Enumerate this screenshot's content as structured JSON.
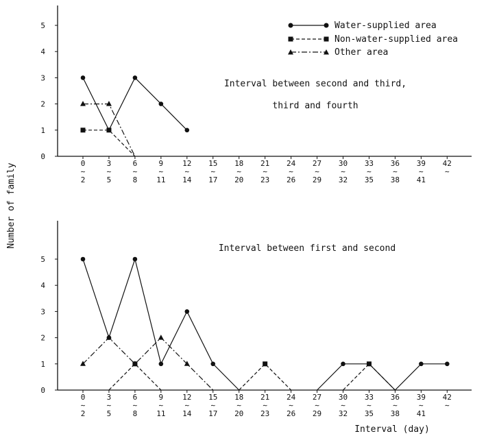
{
  "chart_data": {
    "type": "line",
    "ylabel": "Number of family",
    "xlabel": "Interval (day)",
    "legend": {
      "placement": "top-right",
      "entries": [
        {
          "name": "Water-supplied area",
          "style": "solid",
          "marker": "circle"
        },
        {
          "name": "Non-water-supplied area",
          "style": "dashed",
          "marker": "square"
        },
        {
          "name": "Other area",
          "style": "dashdot",
          "marker": "triangle"
        }
      ]
    },
    "tick_top": [
      "0",
      "3",
      "6",
      "9",
      "12",
      "15",
      "18",
      "21",
      "24",
      "27",
      "30",
      "33",
      "36",
      "39",
      "42"
    ],
    "tick_sep": "∼",
    "tick_bottom": [
      "2",
      "5",
      "8",
      "11",
      "14",
      "17",
      "20",
      "23",
      "26",
      "29",
      "32",
      "35",
      "38",
      "41",
      ""
    ],
    "panels": [
      {
        "annotation": [
          "Interval between second and third,",
          "third and fourth"
        ],
        "ylim": [
          0,
          5
        ],
        "yticks": [
          "0",
          "1",
          "2",
          "3",
          "4",
          "5"
        ],
        "series": [
          {
            "name": "Water-supplied area",
            "points": [
              [
                0,
                3
              ],
              [
                3,
                1
              ],
              [
                6,
                3
              ],
              [
                9,
                2
              ],
              [
                12,
                1
              ]
            ]
          },
          {
            "name": "Non-water-supplied area",
            "points": [
              [
                0,
                1
              ],
              [
                3,
                1
              ],
              [
                6,
                0
              ]
            ]
          },
          {
            "name": "Other area",
            "points": [
              [
                0,
                2
              ],
              [
                3,
                2
              ],
              [
                6,
                0
              ]
            ]
          }
        ]
      },
      {
        "annotation": [
          "Interval between first and second"
        ],
        "ylim": [
          0,
          5
        ],
        "yticks": [
          "0",
          "1",
          "2",
          "3",
          "4",
          "5"
        ],
        "series": [
          {
            "name": "Water-supplied area",
            "segments": [
              [
                [
                  0,
                  5
                ],
                [
                  3,
                  2
                ],
                [
                  6,
                  5
                ],
                [
                  9,
                  1
                ],
                [
                  12,
                  3
                ],
                [
                  15,
                  1
                ],
                [
                  18,
                  0
                ]
              ],
              [
                [
                  27,
                  0
                ],
                [
                  30,
                  1
                ],
                [
                  33,
                  1
                ],
                [
                  36,
                  0
                ],
                [
                  39,
                  1
                ],
                [
                  42,
                  1
                ]
              ]
            ]
          },
          {
            "name": "Non-water-supplied area",
            "segments": [
              [
                [
                  3,
                  0
                ],
                [
                  6,
                  1
                ],
                [
                  9,
                  0
                ]
              ],
              [
                [
                  18,
                  0
                ],
                [
                  21,
                  1
                ],
                [
                  24,
                  0
                ]
              ],
              [
                [
                  30,
                  0
                ],
                [
                  33,
                  1
                ],
                [
                  36,
                  0
                ]
              ]
            ]
          },
          {
            "name": "Other area",
            "segments": [
              [
                [
                  0,
                  1
                ],
                [
                  3,
                  2
                ],
                [
                  6,
                  1
                ],
                [
                  9,
                  2
                ],
                [
                  12,
                  1
                ],
                [
                  15,
                  0
                ]
              ]
            ]
          }
        ]
      }
    ]
  }
}
